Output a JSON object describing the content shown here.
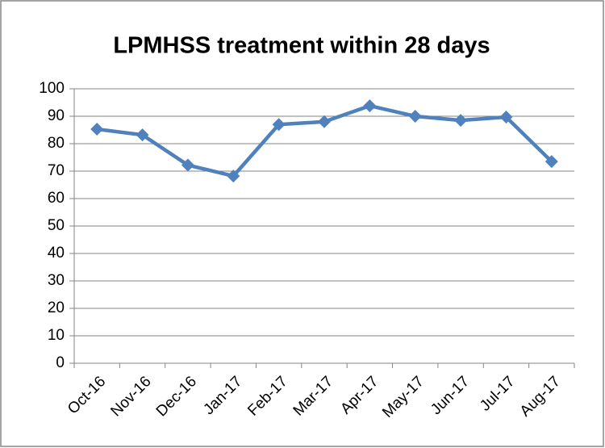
{
  "chart_data": {
    "type": "line",
    "title": "LPMHSS treatment within 28 days",
    "categories": [
      "Oct-16",
      "Nov-16",
      "Dec-16",
      "Jan-17",
      "Feb-17",
      "Mar-17",
      "Apr-17",
      "May-17",
      "Jun-17",
      "Jul-17",
      "Aug-17"
    ],
    "values": [
      85.3,
      83.2,
      72.2,
      68.2,
      87,
      88,
      93.8,
      90,
      88.5,
      89.7,
      73.5
    ],
    "color": "#4f81bd",
    "ylim": [
      0,
      100
    ],
    "yticks": [
      0,
      10,
      20,
      30,
      40,
      50,
      60,
      70,
      80,
      90,
      100
    ],
    "grid": true
  }
}
